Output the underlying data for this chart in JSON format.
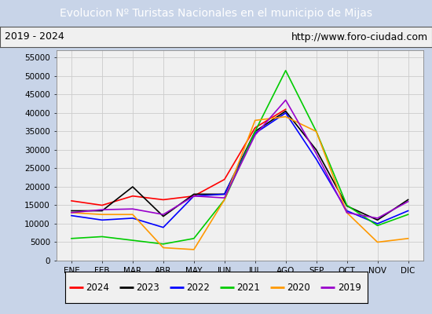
{
  "title": "Evolucion Nº Turistas Nacionales en el municipio de Mijas",
  "subtitle_left": "2019 - 2024",
  "subtitle_right": "http://www.foro-ciudad.com",
  "months": [
    "ENE",
    "FEB",
    "MAR",
    "ABR",
    "MAY",
    "JUN",
    "JUL",
    "AGO",
    "SEP",
    "OCT",
    "NOV",
    "DIC"
  ],
  "ylim": [
    0,
    57000
  ],
  "yticks": [
    0,
    5000,
    10000,
    15000,
    20000,
    25000,
    30000,
    35000,
    40000,
    45000,
    50000,
    55000
  ],
  "series": {
    "2024": {
      "color": "#ff0000",
      "data": [
        16200,
        15000,
        17500,
        16500,
        17500,
        22000,
        36000,
        41000,
        null,
        null,
        null,
        null
      ]
    },
    "2023": {
      "color": "#000000",
      "data": [
        13500,
        13500,
        20000,
        12000,
        18000,
        18000,
        35000,
        40500,
        30000,
        14800,
        11000,
        16500
      ]
    },
    "2022": {
      "color": "#0000ff",
      "data": [
        12200,
        11000,
        11500,
        9000,
        17500,
        18000,
        34500,
        40000,
        27500,
        13500,
        10000,
        13500
      ]
    },
    "2021": {
      "color": "#00cc00",
      "data": [
        6000,
        6500,
        5500,
        4500,
        6000,
        16500,
        35000,
        51500,
        35000,
        15000,
        9500,
        12500
      ]
    },
    "2020": {
      "color": "#ff9900",
      "data": [
        13000,
        12500,
        12500,
        3500,
        3000,
        16500,
        38000,
        39000,
        35000,
        13000,
        5000,
        6000
      ]
    },
    "2019": {
      "color": "#9900cc",
      "data": [
        13000,
        13800,
        14000,
        12500,
        17500,
        17000,
        34000,
        43500,
        29000,
        13000,
        11500,
        16000
      ]
    }
  },
  "title_bg_color": "#4472c4",
  "title_fg_color": "#ffffff",
  "subtitle_bg_color": "#f0f0f0",
  "subtitle_fg_color": "#000000",
  "plot_bg_color": "#f0f0f0",
  "grid_color": "#cccccc",
  "fig_bg_color": "#c8d4e8",
  "legend_bg_color": "#f0f0f0"
}
